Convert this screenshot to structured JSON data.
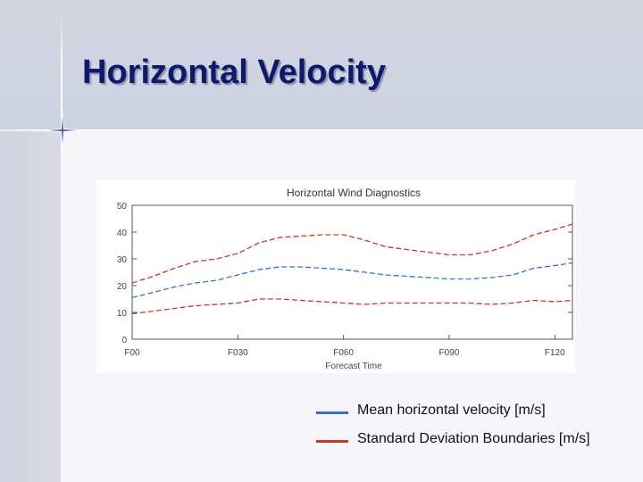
{
  "slide": {
    "title": "Horizontal Velocity"
  },
  "chart_data": {
    "type": "line",
    "title": "Horizontal Wind Diagnostics",
    "xlabel": "Forecast Time",
    "ylabel": "",
    "xlim": [
      0,
      125
    ],
    "ylim": [
      0,
      50
    ],
    "x_ticks": [
      0,
      30,
      60,
      90,
      120
    ],
    "x_tick_labels": [
      "F00",
      "F030",
      "F060",
      "F090",
      "F120"
    ],
    "y_ticks": [
      0,
      10,
      20,
      30,
      40,
      50
    ],
    "y_tick_labels": [
      "0",
      "10",
      "20",
      "30",
      "40",
      "50"
    ],
    "x": [
      0,
      6,
      12,
      18,
      24,
      30,
      36,
      42,
      48,
      54,
      60,
      66,
      72,
      78,
      84,
      90,
      96,
      102,
      108,
      114,
      120,
      125
    ],
    "series": [
      {
        "name": "Mean horizontal velocity [m/s]",
        "color": "#3a6fd8",
        "style": "dashed",
        "values": [
          15.5,
          17.5,
          19.5,
          21,
          22,
          24,
          26,
          27,
          27,
          26.5,
          26,
          25,
          24,
          23.5,
          23,
          22.5,
          22.5,
          23,
          24,
          26.5,
          27.5,
          28.5
        ]
      },
      {
        "name": "Standard Deviation Boundaries [m/s] (upper)",
        "color": "#c0392b",
        "style": "dashed",
        "values": [
          21,
          23.5,
          26.5,
          29,
          30,
          32,
          36,
          38,
          38.5,
          39,
          39,
          37,
          34.5,
          33.5,
          32.5,
          31.5,
          31.5,
          33,
          35.5,
          39,
          41,
          43
        ]
      },
      {
        "name": "Standard Deviation Boundaries [m/s] (lower)",
        "color": "#c0392b",
        "style": "dashed",
        "values": [
          9.5,
          10.5,
          11.5,
          12.5,
          13,
          13.5,
          15,
          15,
          14.5,
          14,
          13.5,
          13,
          13.5,
          13.5,
          13.5,
          13.5,
          13.5,
          13,
          13.5,
          14.5,
          14,
          14.5
        ]
      }
    ],
    "legend": [
      {
        "label": "Mean horizontal velocity [m/s]",
        "color": "#3a6fd8"
      },
      {
        "label": "Standard Deviation Boundaries [m/s]",
        "color": "#c0392b"
      }
    ]
  }
}
